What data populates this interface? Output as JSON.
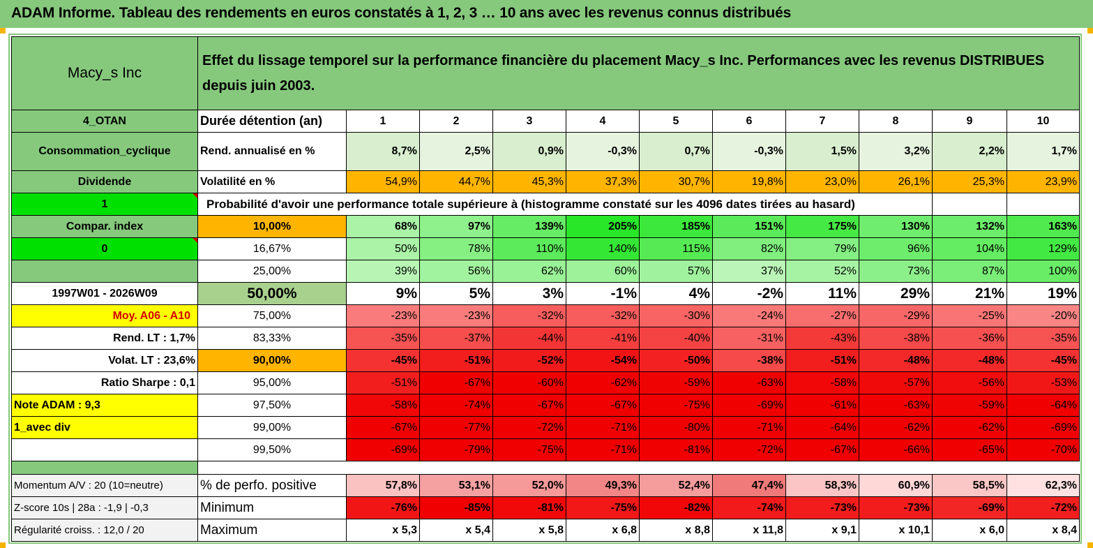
{
  "title": "ADAM Informe. Tableau des rendements en euros constatés à 1, 2, 3 … 10 ans avec les revenus connus distribués",
  "header": {
    "name": "Macy_s Inc",
    "description": "Effet du lissage temporel sur la performance financière du placement Macy_s Inc. Performances avec les revenus DISTRIBUES depuis juin 2003."
  },
  "left": {
    "code": "4_OTAN",
    "sector": "Consommation_cyclique",
    "type": "Dividende",
    "flag1": "1",
    "compar": "Compar. index",
    "flag0": "0",
    "period": "1997W01 - 2026W09",
    "moy": "Moy. A06 - A10",
    "rend_lt": "Rend. LT :   1,7%",
    "volat_lt": "Volat. LT :   23,6%",
    "sharpe": "Ratio Sharpe :   0,1",
    "note": "Note ADAM : 9,3",
    "avec_div": "1_avec div",
    "momentum": "Momentum A/V : 20 (10=neutre)",
    "zscore": "Z-score 10s | 28a : -1,9 | -0,3",
    "regularite": "Régularité croiss. : 12,0 / 20"
  },
  "duree_label": "Durée détention (an)",
  "years": [
    "1",
    "2",
    "3",
    "4",
    "5",
    "6",
    "7",
    "8",
    "9",
    "10"
  ],
  "rend_label": "Rend. annualisé en %",
  "rend": [
    "8,7%",
    "2,5%",
    "0,9%",
    "-0,3%",
    "0,7%",
    "-0,3%",
    "1,5%",
    "3,2%",
    "2,2%",
    "1,7%"
  ],
  "vol_label": "Volatilité en %",
  "vol": [
    "54,9%",
    "44,7%",
    "45,3%",
    "37,3%",
    "30,7%",
    "19,8%",
    "23,0%",
    "26,1%",
    "25,3%",
    "23,9%"
  ],
  "proba_label": "Probabilité d'avoir une performance totale supérieure à (histogramme constaté sur les 4096 dates tirées au hasard)",
  "quantiles": [
    {
      "p": "10,00%",
      "v": [
        "68%",
        "97%",
        "139%",
        "205%",
        "185%",
        "151%",
        "175%",
        "130%",
        "132%",
        "163%"
      ]
    },
    {
      "p": "16,67%",
      "v": [
        "50%",
        "78%",
        "110%",
        "140%",
        "115%",
        "82%",
        "79%",
        "96%",
        "104%",
        "129%"
      ]
    },
    {
      "p": "25,00%",
      "v": [
        "39%",
        "56%",
        "62%",
        "60%",
        "57%",
        "37%",
        "52%",
        "73%",
        "87%",
        "100%"
      ]
    },
    {
      "p": "50,00%",
      "v": [
        "9%",
        "5%",
        "3%",
        "-1%",
        "4%",
        "-2%",
        "11%",
        "29%",
        "21%",
        "19%"
      ]
    },
    {
      "p": "75,00%",
      "v": [
        "-23%",
        "-23%",
        "-32%",
        "-32%",
        "-30%",
        "-24%",
        "-27%",
        "-29%",
        "-25%",
        "-20%"
      ]
    },
    {
      "p": "83,33%",
      "v": [
        "-35%",
        "-37%",
        "-44%",
        "-41%",
        "-40%",
        "-31%",
        "-43%",
        "-38%",
        "-36%",
        "-35%"
      ]
    },
    {
      "p": "90,00%",
      "v": [
        "-45%",
        "-51%",
        "-52%",
        "-54%",
        "-50%",
        "-38%",
        "-51%",
        "-48%",
        "-48%",
        "-45%"
      ]
    },
    {
      "p": "95,00%",
      "v": [
        "-51%",
        "-67%",
        "-60%",
        "-62%",
        "-59%",
        "-63%",
        "-58%",
        "-57%",
        "-56%",
        "-53%"
      ]
    },
    {
      "p": "97,50%",
      "v": [
        "-58%",
        "-74%",
        "-67%",
        "-67%",
        "-75%",
        "-69%",
        "-61%",
        "-63%",
        "-59%",
        "-64%"
      ]
    },
    {
      "p": "99,00%",
      "v": [
        "-67%",
        "-77%",
        "-72%",
        "-71%",
        "-80%",
        "-71%",
        "-64%",
        "-62%",
        "-62%",
        "-69%"
      ]
    },
    {
      "p": "99,50%",
      "v": [
        "-69%",
        "-79%",
        "-75%",
        "-71%",
        "-81%",
        "-72%",
        "-67%",
        "-66%",
        "-65%",
        "-70%"
      ]
    }
  ],
  "pos_label": "% de perfo. positive",
  "pos": [
    "57,8%",
    "53,1%",
    "52,0%",
    "49,3%",
    "52,4%",
    "47,4%",
    "58,3%",
    "60,9%",
    "58,5%",
    "62,3%"
  ],
  "min_label": "Minimum",
  "min": [
    "-76%",
    "-85%",
    "-81%",
    "-75%",
    "-82%",
    "-74%",
    "-73%",
    "-73%",
    "-69%",
    "-72%"
  ],
  "max_label": "Maximum",
  "max": [
    "x 5,3",
    "x 5,4",
    "x 5,8",
    "x 6,8",
    "x 8,8",
    "x 11,8",
    "x 9,1",
    "x 10,1",
    "x 6,0",
    "x 8,4"
  ],
  "colors": {
    "header_green": "#86c97d",
    "bright_green": "#00e000",
    "yellow": "#ffff00",
    "orange": "#ffb400",
    "label_red": "#d40000"
  }
}
